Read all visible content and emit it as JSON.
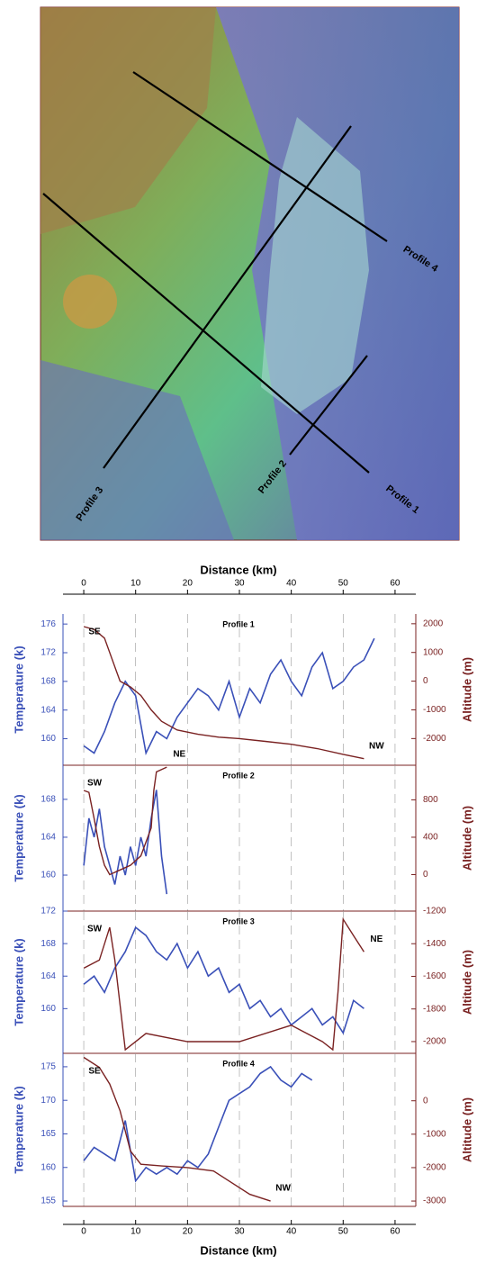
{
  "map": {
    "profile_labels": [
      "Profile 1",
      "Profile 2",
      "Profile 3",
      "Profile 4"
    ]
  },
  "chart_data": [
    {
      "type": "line",
      "title": "Profile 1",
      "xlabel": "Distance (km)",
      "xaxis": "top",
      "ylabel": "Temperature (k)",
      "y2label": "Altitude (m)",
      "annotations": [
        "SE",
        "NW"
      ],
      "xlim": [
        -4,
        64
      ],
      "xticks": [
        0,
        10,
        20,
        30,
        40,
        50,
        60
      ],
      "ylim": [
        156.3,
        177.4
      ],
      "yticks": [
        160,
        164,
        168,
        172,
        176
      ],
      "y2lim": [
        -2930,
        2340
      ],
      "y2ticks": [
        -2000,
        -1000,
        0,
        1000,
        2000
      ],
      "series": [
        {
          "color": "#3a50b8",
          "x": [
            0,
            2,
            4,
            6,
            8,
            10,
            12,
            14,
            16,
            18,
            20,
            22,
            24,
            26,
            28,
            30,
            32,
            34,
            36,
            38,
            40,
            42,
            44,
            46,
            48,
            50,
            52,
            54,
            56
          ],
          "values": [
            159,
            158,
            161,
            165,
            168,
            166,
            158,
            161,
            160,
            163,
            165,
            167,
            166,
            164,
            168,
            163,
            167,
            165,
            169,
            171,
            168,
            166,
            170,
            172,
            167,
            168,
            170,
            171,
            174
          ]
        },
        {
          "color": "#7a2222",
          "axis": "y2",
          "x": [
            0,
            2,
            4,
            6,
            7,
            9,
            11,
            13,
            15,
            18,
            22,
            26,
            30,
            35,
            40,
            45,
            50,
            54
          ],
          "values": [
            1900,
            1800,
            1500,
            500,
            0,
            -200,
            -500,
            -1000,
            -1400,
            -1700,
            -1850,
            -1950,
            -2000,
            -2100,
            -2200,
            -2350,
            -2550,
            -2700
          ]
        }
      ]
    },
    {
      "type": "line",
      "title": "Profile 2",
      "xaxis": "none",
      "ylabel": "Temperature (k)",
      "y2label": "Altitude (m)",
      "annotations": [
        "SW",
        "NE"
      ],
      "xlim": [
        -4,
        64
      ],
      "xticks": [
        0,
        10,
        20,
        30,
        40,
        50,
        60
      ],
      "ylim": [
        156.2,
        171.6
      ],
      "yticks": [
        160,
        164,
        168
      ],
      "y2lim": [
        -390,
        1170
      ],
      "y2ticks": [
        0,
        400,
        800
      ],
      "series": [
        {
          "color": "#3a50b8",
          "x": [
            0,
            1,
            2,
            3,
            4,
            5,
            6,
            7,
            8,
            9,
            10,
            11,
            12,
            13,
            14,
            15,
            16
          ],
          "values": [
            161,
            166,
            164,
            167,
            163,
            161,
            159,
            162,
            160,
            163,
            161,
            164,
            162,
            166,
            169,
            162,
            158
          ]
        },
        {
          "color": "#7a2222",
          "axis": "y2",
          "x": [
            0,
            1,
            2,
            3,
            4,
            5,
            7,
            9,
            11,
            13,
            13.5,
            14,
            16
          ],
          "values": [
            900,
            880,
            600,
            300,
            100,
            0,
            50,
            100,
            200,
            500,
            900,
            1100,
            1150
          ]
        }
      ]
    },
    {
      "type": "line",
      "title": "Profile 3",
      "xaxis": "none",
      "ylabel": "Temperature (k)",
      "y2label": "Altitude (m)",
      "annotations": [
        "SW",
        "NE"
      ],
      "xlim": [
        -4,
        64
      ],
      "xticks": [
        0,
        10,
        20,
        30,
        40,
        50,
        60
      ],
      "ylim": [
        154.5,
        172
      ],
      "yticks": [
        160,
        164,
        168,
        172
      ],
      "y2lim": [
        -2072,
        -1200
      ],
      "y2ticks": [
        -2000,
        -1800,
        -1600,
        -1400,
        -1200
      ],
      "series": [
        {
          "color": "#3a50b8",
          "x": [
            0,
            2,
            4,
            6,
            8,
            10,
            12,
            14,
            16,
            18,
            20,
            22,
            24,
            26,
            28,
            30,
            32,
            34,
            36,
            38,
            40,
            42,
            44,
            46,
            48,
            50,
            52,
            54
          ],
          "values": [
            163,
            164,
            162,
            165,
            167,
            170,
            169,
            167,
            166,
            168,
            165,
            167,
            164,
            165,
            162,
            163,
            160,
            161,
            159,
            160,
            158,
            159,
            160,
            158,
            159,
            157,
            161,
            160
          ]
        },
        {
          "color": "#7a2222",
          "axis": "y2",
          "x": [
            0,
            3,
            5,
            6,
            8,
            12,
            20,
            30,
            40,
            46,
            48,
            49,
            50,
            52,
            54
          ],
          "values": [
            -1550,
            -1500,
            -1300,
            -1500,
            -2050,
            -1950,
            -2000,
            -2000,
            -1900,
            -2000,
            -2050,
            -1700,
            -1250,
            -1350,
            -1450
          ]
        }
      ]
    },
    {
      "type": "line",
      "title": "Profile 4",
      "xlabel": "Distance (km)",
      "xaxis": "bottom",
      "ylabel": "Temperature (k)",
      "y2label": "Altitude (m)",
      "annotations": [
        "SE",
        "NW"
      ],
      "xlim": [
        -4,
        64
      ],
      "xticks": [
        0,
        10,
        20,
        30,
        40,
        50,
        60
      ],
      "ylim": [
        154.2,
        177
      ],
      "yticks": [
        155,
        160,
        165,
        170,
        175
      ],
      "y2lim": [
        -3160,
        1420
      ],
      "y2ticks": [
        -3000,
        -2000,
        -1000,
        0
      ],
      "series": [
        {
          "color": "#3a50b8",
          "x": [
            0,
            2,
            4,
            6,
            8,
            10,
            12,
            14,
            16,
            18,
            20,
            22,
            24,
            26,
            28,
            30,
            32,
            34,
            36,
            38,
            40,
            42,
            44
          ],
          "values": [
            161,
            163,
            162,
            161,
            167,
            158,
            160,
            159,
            160,
            159,
            161,
            160,
            162,
            166,
            170,
            171,
            172,
            174,
            175,
            173,
            172,
            174,
            173
          ]
        },
        {
          "color": "#7a2222",
          "axis": "y2",
          "x": [
            0,
            3,
            5,
            7,
            9,
            11,
            15,
            20,
            25,
            28,
            32,
            36
          ],
          "values": [
            1300,
            1000,
            500,
            -300,
            -1500,
            -1900,
            -1950,
            -2000,
            -2100,
            -2400,
            -2800,
            -3000
          ]
        }
      ]
    }
  ]
}
